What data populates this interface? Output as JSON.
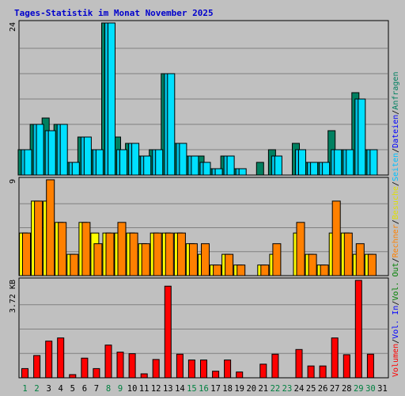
{
  "title": "Tages-Statistik im Monat November 2025",
  "colors": {
    "title": "#0000cc",
    "bg": "#c0c0c0",
    "plot_border": "#000000",
    "gridline": "#808080",
    "anfragen": "#008060",
    "dateien": "#00c0e0",
    "seiten": "#00e0ff",
    "besuche": "#ffff00",
    "rechner": "#ff8000",
    "volumen": "#ff0000",
    "weekend_label": "#008040",
    "weekday_label": "#000000"
  },
  "side_legend": [
    {
      "label": "Volumen",
      "color": "#ff0000"
    },
    {
      "label": "/",
      "color": "#000000"
    },
    {
      "label": "Vol. In",
      "color": "#0000ff"
    },
    {
      "label": "/",
      "color": "#000000"
    },
    {
      "label": "Vol. Out",
      "color": "#008000"
    },
    {
      "label": "/",
      "color": "#000000"
    },
    {
      "label": "Rechner",
      "color": "#ff8000"
    },
    {
      "label": "/",
      "color": "#000000"
    },
    {
      "label": "Besuche",
      "color": "#e0e000"
    },
    {
      "label": "/",
      "color": "#000000"
    },
    {
      "label": "Seiten",
      "color": "#00c0ff"
    },
    {
      "label": "/",
      "color": "#000000"
    },
    {
      "label": "Dateien",
      "color": "#0000ff"
    },
    {
      "label": "/",
      "color": "#000000"
    },
    {
      "label": "Anfragen",
      "color": "#008060"
    }
  ],
  "chart_data": [
    {
      "type": "bar",
      "panel": "top",
      "ymax_label": "24",
      "ylim": [
        0,
        24
      ],
      "categories": [
        "1",
        "2",
        "3",
        "4",
        "5",
        "6",
        "7",
        "8",
        "9",
        "10",
        "11",
        "12",
        "13",
        "14",
        "15",
        "16",
        "17",
        "18",
        "19",
        "20",
        "21",
        "22",
        "23",
        "24",
        "25",
        "26",
        "27",
        "28",
        "29",
        "30",
        "31"
      ],
      "weekend": [
        1,
        2,
        8,
        9,
        15,
        16,
        22,
        23,
        29,
        30
      ],
      "series": [
        {
          "name": "Anfragen",
          "color": "#008060",
          "values": [
            4,
            8,
            9,
            8,
            2,
            6,
            4,
            24,
            6,
            5,
            3,
            4,
            16,
            5,
            3,
            3,
            1,
            3,
            1,
            0,
            2,
            4,
            0,
            5,
            2,
            2,
            7,
            4,
            13,
            4,
            0
          ]
        },
        {
          "name": "Dateien",
          "color": "#00c0e0",
          "values": [
            4,
            8,
            7,
            8,
            2,
            6,
            4,
            24,
            4,
            5,
            3,
            4,
            16,
            5,
            3,
            2,
            1,
            3,
            1,
            0,
            0,
            3,
            0,
            4,
            2,
            2,
            4,
            4,
            12,
            4,
            0
          ]
        },
        {
          "name": "Seiten",
          "color": "#00e0ff",
          "values": [
            4,
            8,
            7,
            8,
            2,
            6,
            4,
            24,
            4,
            5,
            3,
            4,
            16,
            5,
            3,
            2,
            1,
            3,
            1,
            0,
            0,
            3,
            0,
            4,
            2,
            2,
            4,
            4,
            12,
            4,
            0
          ]
        }
      ]
    },
    {
      "type": "bar",
      "panel": "middle",
      "ymax_label": "9",
      "ylim": [
        0,
        9
      ],
      "categories": [
        "1",
        "2",
        "3",
        "4",
        "5",
        "6",
        "7",
        "8",
        "9",
        "10",
        "11",
        "12",
        "13",
        "14",
        "15",
        "16",
        "17",
        "18",
        "19",
        "20",
        "21",
        "22",
        "23",
        "24",
        "25",
        "26",
        "27",
        "28",
        "29",
        "30",
        "31"
      ],
      "series": [
        {
          "name": "Besuche",
          "color": "#ffff00",
          "values": [
            4,
            7,
            7,
            5,
            2,
            5,
            4,
            4,
            4,
            4,
            3,
            4,
            4,
            4,
            3,
            2,
            1,
            2,
            1,
            0,
            1,
            2,
            0,
            4,
            2,
            1,
            4,
            4,
            2,
            2,
            0
          ]
        },
        {
          "name": "Rechner",
          "color": "#ff8000",
          "values": [
            4,
            7,
            9,
            5,
            2,
            5,
            3,
            4,
            5,
            4,
            3,
            4,
            4,
            4,
            3,
            3,
            1,
            2,
            1,
            0,
            1,
            3,
            0,
            5,
            2,
            1,
            7,
            4,
            3,
            2,
            0
          ]
        }
      ]
    },
    {
      "type": "bar",
      "panel": "bottom",
      "ymax_label": "3.72 KB",
      "ylim": [
        0,
        3.72
      ],
      "categories": [
        "1",
        "2",
        "3",
        "4",
        "5",
        "6",
        "7",
        "8",
        "9",
        "10",
        "11",
        "12",
        "13",
        "14",
        "15",
        "16",
        "17",
        "18",
        "19",
        "20",
        "21",
        "22",
        "23",
        "24",
        "25",
        "26",
        "27",
        "28",
        "29",
        "30",
        "31"
      ],
      "series": [
        {
          "name": "Volumen",
          "color": "#ff0000",
          "values": [
            0.35,
            0.85,
            1.4,
            1.52,
            0.12,
            0.75,
            0.35,
            1.25,
            0.98,
            0.92,
            0.15,
            0.7,
            3.5,
            0.9,
            0.68,
            0.68,
            0.25,
            0.68,
            0.22,
            0,
            0.52,
            0.9,
            0,
            1.08,
            0.45,
            0.45,
            1.52,
            0.88,
            3.72,
            0.9,
            0
          ]
        }
      ]
    }
  ]
}
